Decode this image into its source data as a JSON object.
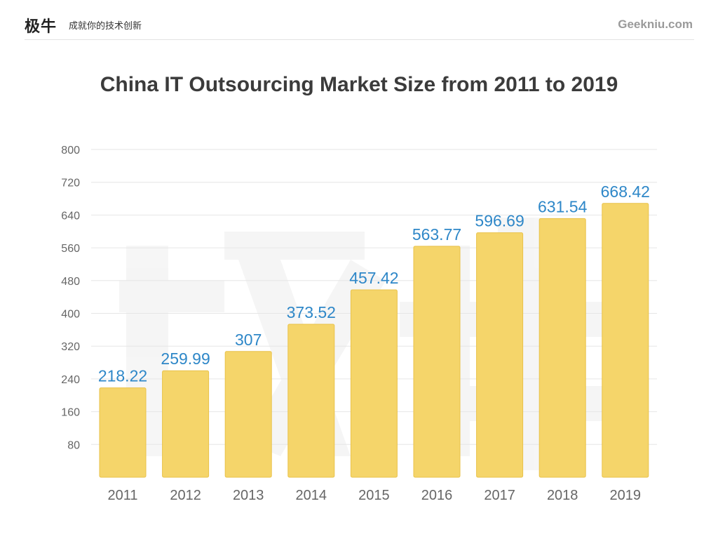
{
  "header": {
    "logo": "极牛",
    "slogan": "成就你的技术创新",
    "site": "Geekniu.com"
  },
  "colors": {
    "bar": "#f5d56a",
    "bar_edge": "#e9c24a",
    "data_label": "#2e87c8",
    "grid": "#e6e6e6",
    "tick_label": "#666666"
  },
  "chart_data": {
    "type": "bar",
    "title": "China IT Outsourcing Market Size from 2011 to 2019",
    "xlabel": "",
    "ylabel": "",
    "categories": [
      "2011",
      "2012",
      "2013",
      "2014",
      "2015",
      "2016",
      "2017",
      "2018",
      "2019"
    ],
    "values": [
      218.22,
      259.99,
      307,
      373.52,
      457.42,
      563.77,
      596.69,
      631.54,
      668.42
    ],
    "value_labels": [
      "218.22",
      "259.99",
      "307",
      "373.52",
      "457.42",
      "563.77",
      "596.69",
      "631.54",
      "668.42"
    ],
    "ylim": [
      0,
      800
    ],
    "yticks": [
      "80",
      "160",
      "240",
      "320",
      "400",
      "480",
      "560",
      "640",
      "720",
      "800"
    ],
    "grid": true
  }
}
